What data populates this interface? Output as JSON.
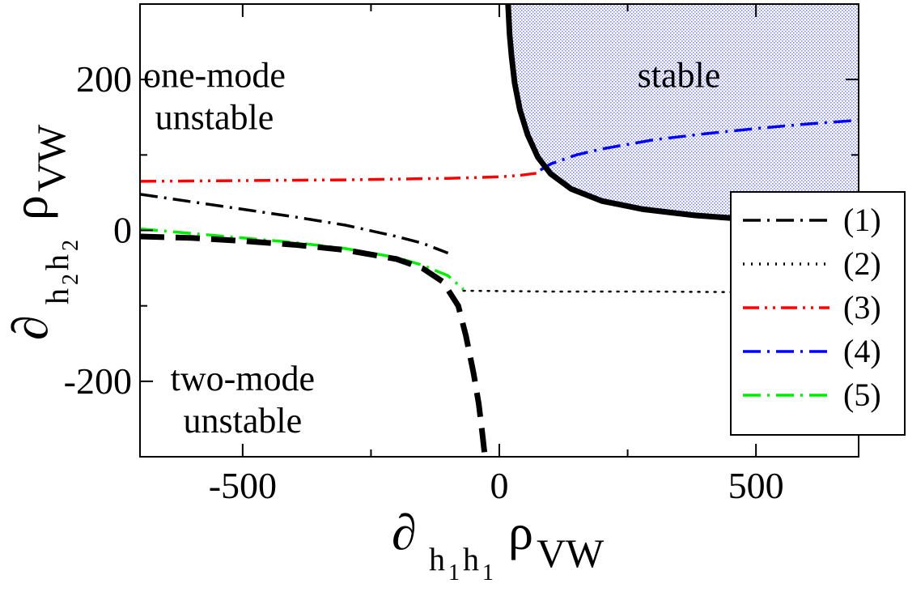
{
  "chart_data": {
    "type": "line",
    "xlim": [
      -700,
      700
    ],
    "ylim": [
      -300,
      300
    ],
    "x_ticks": [
      -500,
      0,
      500
    ],
    "y_ticks": [
      -200,
      0,
      200
    ],
    "x_tick_labels": [
      "-500",
      "0",
      "500"
    ],
    "y_tick_labels": [
      "-200",
      "0",
      "200"
    ],
    "xlabel": {
      "main": "∂",
      "sub": "h",
      "subsub": "1",
      "sub2": "h",
      "subsub2": "1",
      "tail": "ρ",
      "tail_sub": "VW"
    },
    "ylabel": {
      "main": "∂",
      "sub": "h",
      "subsub": "2",
      "sub2": "h",
      "subsub2": "2",
      "tail": "ρ",
      "tail_sub": "VW"
    },
    "grid": false,
    "legend": {
      "placement": "right"
    },
    "regions": [
      {
        "label_lines": [
          "one-mode",
          "unstable"
        ],
        "at": [
          -555,
          190
        ]
      },
      {
        "label_lines": [
          "two-mode",
          "unstable"
        ],
        "at": [
          -500,
          -212
        ]
      },
      {
        "label_lines": [
          "stable"
        ],
        "at": [
          350,
          190
        ]
      }
    ],
    "boundaries": [
      {
        "id": "stable-boundary",
        "style": "solid",
        "color": "#000000",
        "x": [
          17,
          20,
          24,
          30,
          40,
          55,
          75,
          100,
          140,
          200,
          280,
          380,
          500,
          600,
          700
        ],
        "y": [
          300,
          260,
          230,
          195,
          160,
          127,
          97,
          75,
          55,
          39,
          28,
          20,
          14,
          11,
          9
        ]
      },
      {
        "id": "two-mode-boundary",
        "style": "dashed",
        "color": "#000000",
        "x": [
          -700,
          -600,
          -500,
          -400,
          -300,
          -200,
          -150,
          -110,
          -80,
          -65,
          -50,
          -40,
          -33,
          -28
        ],
        "y": [
          -8,
          -10,
          -14,
          -19,
          -26,
          -38,
          -50,
          -68,
          -100,
          -140,
          -190,
          -230,
          -270,
          -300
        ]
      }
    ],
    "series": [
      {
        "name": "(1)",
        "style": "dashdot",
        "color": "#000000",
        "x": [
          -700,
          -600,
          -500,
          -400,
          -300,
          -200,
          -150,
          -100
        ],
        "y": [
          48,
          38,
          28,
          18,
          7,
          -8,
          -17,
          -30
        ]
      },
      {
        "name": "(2)",
        "style": "dotted",
        "color": "#000000",
        "x": [
          -70,
          100,
          300,
          500,
          700
        ],
        "y": [
          -80,
          -81,
          -81,
          -82,
          -82
        ]
      },
      {
        "name": "(3)",
        "style": "dashdotdot",
        "color": "#ff0000",
        "x": [
          -700,
          -500,
          -300,
          -100,
          0,
          40,
          75
        ],
        "y": [
          65,
          66,
          67,
          69,
          71,
          73,
          76
        ]
      },
      {
        "name": "(4)",
        "style": "dashdot",
        "color": "#0000ff",
        "x": [
          80,
          100,
          150,
          200,
          300,
          400,
          500,
          600,
          700
        ],
        "y": [
          80,
          88,
          100,
          108,
          120,
          128,
          135,
          141,
          146
        ]
      },
      {
        "name": "(5)",
        "style": "dashdot",
        "color": "#00ee00",
        "x": [
          -700,
          -600,
          -500,
          -400,
          -300,
          -200,
          -150,
          -100,
          -70
        ],
        "y": [
          2,
          -4,
          -10,
          -16,
          -24,
          -36,
          -46,
          -60,
          -78
        ]
      }
    ],
    "colors": {
      "stable_fill": "#2233cc",
      "boundary": "#000000"
    }
  }
}
